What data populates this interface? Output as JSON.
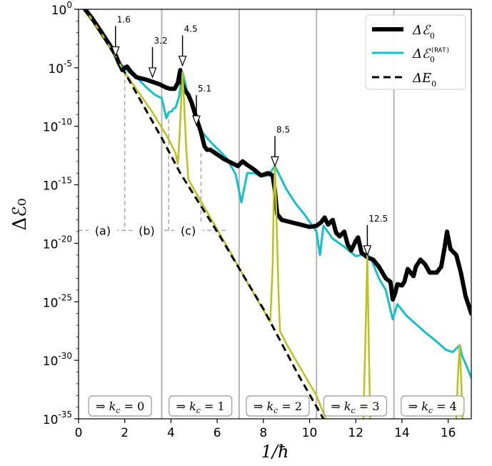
{
  "chart_data": {
    "type": "line",
    "xlabel": "1/ħ",
    "ylabel": "Δℰ₀",
    "xlim": [
      0,
      17
    ],
    "ylim_exponent": [
      -35,
      0
    ],
    "y_scale": "log",
    "grid": false,
    "legend_position": "top-right",
    "x_ticks": [
      "0",
      "2",
      "4",
      "6",
      "8",
      "10",
      "12",
      "14",
      "16"
    ],
    "y_ticks": [
      {
        "base": "10",
        "exp": "0"
      },
      {
        "base": "10",
        "exp": "-5"
      },
      {
        "base": "10",
        "exp": "-10"
      },
      {
        "base": "10",
        "exp": "-15"
      },
      {
        "base": "10",
        "exp": "-20"
      },
      {
        "base": "10",
        "exp": "-25"
      },
      {
        "base": "10",
        "exp": "-30"
      },
      {
        "base": "10",
        "exp": "-35"
      }
    ],
    "legend": [
      {
        "symbol": "Δℰ",
        "sub": "0",
        "sup": ""
      },
      {
        "symbol": "Δℰ",
        "sub": "0",
        "sup": "(RAT)"
      },
      {
        "symbol": "ΔE",
        "sub": "0",
        "sup": ""
      }
    ],
    "vertical_lines_x": [
      3.6,
      6.95,
      10.3,
      13.65
    ],
    "k_c_boxes": [
      {
        "prefix": "⇒ k",
        "sub": "c",
        "suffix": " = 0"
      },
      {
        "prefix": "⇒ k",
        "sub": "c",
        "suffix": " = 1"
      },
      {
        "prefix": "⇒ k",
        "sub": "c",
        "suffix": " = 2"
      },
      {
        "prefix": "⇒ k",
        "sub": "c",
        "suffix": " = 3"
      },
      {
        "prefix": "⇒ k",
        "sub": "c",
        "suffix": " = 4"
      }
    ],
    "arrows": [
      {
        "label": "1.6",
        "x": 1.6,
        "y_exp": -4.0
      },
      {
        "label": "3.2",
        "x": 3.2,
        "y_exp": -5.8
      },
      {
        "label": "4.5",
        "x": 4.5,
        "y_exp": -4.8
      },
      {
        "label": "5.1",
        "x": 5.1,
        "y_exp": -9.9
      },
      {
        "label": "8.5",
        "x": 8.5,
        "y_exp": -13.4
      },
      {
        "label": "12.5",
        "x": 12.5,
        "y_exp": -21.0
      }
    ],
    "regions": [
      "(a)",
      "(b)",
      "(c)"
    ],
    "series": [
      {
        "name": "Δℰ₀",
        "color": "#000000",
        "points": [
          [
            0.28,
            0
          ],
          [
            0.6,
            -0.8
          ],
          [
            1.0,
            -2.0
          ],
          [
            1.4,
            -3.2
          ],
          [
            1.6,
            -3.9
          ],
          [
            1.75,
            -4.6
          ],
          [
            1.9,
            -5.2
          ],
          [
            2.0,
            -5.0
          ],
          [
            2.1,
            -4.9
          ],
          [
            2.25,
            -5.3
          ],
          [
            2.5,
            -5.8
          ],
          [
            2.9,
            -6.0
          ],
          [
            3.2,
            -6.2
          ],
          [
            3.5,
            -6.4
          ],
          [
            3.8,
            -6.7
          ],
          [
            4.0,
            -6.8
          ],
          [
            4.15,
            -6.8
          ],
          [
            4.3,
            -6.3
          ],
          [
            4.4,
            -5.2
          ],
          [
            4.5,
            -6.4
          ],
          [
            4.6,
            -6.9
          ],
          [
            4.75,
            -7.3
          ],
          [
            4.9,
            -8.0
          ],
          [
            5.1,
            -9.3
          ],
          [
            5.3,
            -10.5
          ],
          [
            5.45,
            -11.7
          ],
          [
            5.55,
            -12.0
          ],
          [
            5.7,
            -12.0
          ],
          [
            6.0,
            -12.4
          ],
          [
            6.3,
            -12.8
          ],
          [
            6.6,
            -13.1
          ],
          [
            6.9,
            -13.4
          ],
          [
            7.1,
            -13.0
          ],
          [
            7.3,
            -13.3
          ],
          [
            7.6,
            -13.7
          ],
          [
            7.9,
            -14.2
          ],
          [
            8.2,
            -14.0
          ],
          [
            8.4,
            -14.2
          ],
          [
            8.5,
            -15.5
          ],
          [
            8.6,
            -17.5
          ],
          [
            8.8,
            -18.0
          ],
          [
            9.2,
            -18.2
          ],
          [
            9.6,
            -18.4
          ],
          [
            10.0,
            -18.6
          ],
          [
            10.3,
            -18.5
          ],
          [
            10.5,
            -18.2
          ],
          [
            10.65,
            -17.8
          ],
          [
            10.8,
            -18.4
          ],
          [
            11.0,
            -18.0
          ],
          [
            11.15,
            -19.1
          ],
          [
            11.3,
            -19.4
          ],
          [
            11.5,
            -19.0
          ],
          [
            11.65,
            -20.1
          ],
          [
            11.8,
            -20.6
          ],
          [
            12.0,
            -19.8
          ],
          [
            12.1,
            -19.5
          ],
          [
            12.25,
            -20.8
          ],
          [
            12.5,
            -21.2
          ],
          [
            12.75,
            -21.4
          ],
          [
            13.0,
            -22.0
          ],
          [
            13.3,
            -23.0
          ],
          [
            13.5,
            -23.3
          ],
          [
            13.6,
            -24.8
          ],
          [
            13.7,
            -24.3
          ],
          [
            13.8,
            -23.5
          ],
          [
            14.0,
            -23.6
          ],
          [
            14.1,
            -23.3
          ],
          [
            14.25,
            -22.2
          ],
          [
            14.5,
            -22.8
          ],
          [
            14.6,
            -22.0
          ],
          [
            14.8,
            -21.4
          ],
          [
            15.0,
            -21.8
          ],
          [
            15.2,
            -22.5
          ],
          [
            15.5,
            -22.5
          ],
          [
            15.7,
            -22.0
          ],
          [
            15.85,
            -20.3
          ],
          [
            15.95,
            -19.0
          ],
          [
            16.1,
            -20.5
          ],
          [
            16.35,
            -21.0
          ],
          [
            16.55,
            -22.5
          ],
          [
            16.75,
            -24.5
          ],
          [
            17.0,
            -26.0
          ]
        ]
      },
      {
        "name": "Δℰ₀(RAT)",
        "color": "#14c0c8",
        "points": [
          [
            0.3,
            0
          ],
          [
            0.6,
            -0.8
          ],
          [
            1.0,
            -2.0
          ],
          [
            1.4,
            -3.4
          ],
          [
            1.8,
            -4.6
          ],
          [
            2.2,
            -5.4
          ],
          [
            2.6,
            -6.0
          ],
          [
            3.0,
            -6.8
          ],
          [
            3.3,
            -7.3
          ],
          [
            3.6,
            -7.6
          ],
          [
            3.8,
            -9.3
          ],
          [
            3.9,
            -8.8
          ],
          [
            4.05,
            -8.7
          ],
          [
            4.1,
            -8.5
          ],
          [
            4.2,
            -8.4
          ],
          [
            4.35,
            -7.5
          ],
          [
            4.5,
            -5.4
          ],
          [
            4.7,
            -7.0
          ],
          [
            5.0,
            -9.0
          ],
          [
            5.3,
            -10.4
          ],
          [
            5.7,
            -11.3
          ],
          [
            6.0,
            -11.9
          ],
          [
            6.4,
            -12.7
          ],
          [
            6.8,
            -14.1
          ],
          [
            7.05,
            -16.5
          ],
          [
            7.3,
            -14.0
          ],
          [
            7.6,
            -14.0
          ],
          [
            7.9,
            -14.3
          ],
          [
            8.2,
            -14.2
          ],
          [
            8.5,
            -13.4
          ],
          [
            8.7,
            -14.2
          ],
          [
            9.0,
            -15.4
          ],
          [
            9.4,
            -16.6
          ],
          [
            9.8,
            -17.6
          ],
          [
            10.3,
            -19.0
          ],
          [
            10.45,
            -21.0
          ],
          [
            10.6,
            -18.5
          ],
          [
            11.0,
            -19.6
          ],
          [
            11.5,
            -20.3
          ],
          [
            12.0,
            -21.1
          ],
          [
            12.5,
            -20.9
          ],
          [
            12.7,
            -21.5
          ],
          [
            13.0,
            -23.0
          ],
          [
            13.3,
            -24.0
          ],
          [
            13.6,
            -26.5
          ],
          [
            13.8,
            -25.2
          ],
          [
            14.2,
            -26.2
          ],
          [
            14.6,
            -26.9
          ],
          [
            15.0,
            -27.6
          ],
          [
            15.5,
            -28.4
          ],
          [
            15.9,
            -29.1
          ],
          [
            16.2,
            -29.3
          ],
          [
            16.5,
            -28.7
          ],
          [
            16.6,
            -29.6
          ],
          [
            16.8,
            -30.5
          ],
          [
            17.0,
            -31.5
          ]
        ]
      },
      {
        "name": "ΔE₀",
        "color": "#000000",
        "dashed": true,
        "points": [
          [
            0.3,
            0
          ],
          [
            1.6,
            -4.0
          ],
          [
            2.0,
            -5.4
          ],
          [
            3.6,
            -11.0
          ],
          [
            4.4,
            -14.0
          ],
          [
            6.0,
            -19.0
          ],
          [
            8.0,
            -25.6
          ],
          [
            9.5,
            -31.2
          ],
          [
            10.6,
            -35.0
          ]
        ]
      },
      {
        "name": "",
        "color": "#b9c31c",
        "points": [
          [
            0.28,
            0
          ],
          [
            1.0,
            -2.1
          ],
          [
            1.6,
            -4.0
          ],
          [
            2.0,
            -5.4
          ],
          [
            2.6,
            -7.1
          ],
          [
            3.2,
            -8.8
          ],
          [
            3.6,
            -10.1
          ],
          [
            3.9,
            -11.1
          ],
          [
            4.2,
            -12.3
          ],
          [
            4.3,
            -13.2
          ],
          [
            4.38,
            -10.5
          ],
          [
            4.45,
            -7.5
          ],
          [
            4.5,
            -5.4
          ],
          [
            4.57,
            -8.0
          ],
          [
            4.65,
            -11.5
          ],
          [
            4.75,
            -14.5
          ],
          [
            5.0,
            -15.4
          ],
          [
            5.5,
            -17.1
          ],
          [
            6.0,
            -18.8
          ],
          [
            6.5,
            -20.5
          ],
          [
            7.0,
            -22.3
          ],
          [
            7.5,
            -24.0
          ],
          [
            8.0,
            -25.7
          ],
          [
            8.3,
            -26.7
          ],
          [
            8.4,
            -22.0
          ],
          [
            8.45,
            -16.0
          ],
          [
            8.5,
            -13.4
          ],
          [
            8.57,
            -18.0
          ],
          [
            8.65,
            -24.0
          ],
          [
            8.72,
            -27.5
          ],
          [
            9.0,
            -28.6
          ],
          [
            9.5,
            -30.3
          ],
          [
            10.0,
            -32.0
          ],
          [
            10.3,
            -33.0
          ],
          [
            10.6,
            -34.5
          ],
          [
            10.7,
            -35.0
          ]
        ]
      },
      {
        "name": "",
        "color": "#b9c31c",
        "points": [
          [
            12.33,
            -35.0
          ],
          [
            12.42,
            -28.0
          ],
          [
            12.5,
            -21.0
          ],
          [
            12.55,
            -27.0
          ],
          [
            12.62,
            -35.0
          ]
        ]
      },
      {
        "name": "",
        "color": "#b9c31c",
        "points": [
          [
            16.35,
            -35.0
          ],
          [
            16.42,
            -31.5
          ],
          [
            16.5,
            -28.7
          ],
          [
            16.56,
            -31.5
          ],
          [
            16.62,
            -35.0
          ]
        ]
      }
    ]
  }
}
